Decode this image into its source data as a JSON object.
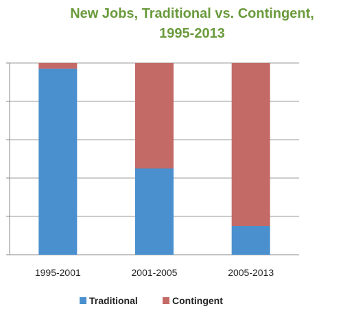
{
  "chart_data": {
    "type": "bar",
    "stacked": true,
    "title": "New Jobs, Traditional vs. Contingent, 1995-2013",
    "title_lines": [
      "New Jobs, Traditional vs. Contingent,",
      "1995-2013"
    ],
    "categories": [
      "1995-2001",
      "2001-2005",
      "2005-2013"
    ],
    "series": [
      {
        "name": "Traditional",
        "color": "#4a90cf",
        "values": [
          97,
          45,
          15
        ]
      },
      {
        "name": "Contingent",
        "color": "#c46a66",
        "values": [
          3,
          55,
          85
        ]
      }
    ],
    "ylim": [
      0,
      100
    ],
    "grid": true,
    "legend_position": "bottom"
  }
}
